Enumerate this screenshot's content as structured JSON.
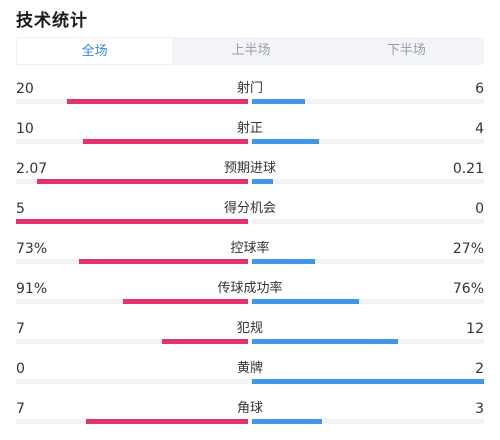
{
  "title": "技术统计",
  "tabs": [
    {
      "label": "全场",
      "active": true
    },
    {
      "label": "上半场",
      "active": false
    },
    {
      "label": "下半场",
      "active": false
    }
  ],
  "colors": {
    "home": "#e4336b",
    "away": "#3d97e6",
    "tab_active": "#3a86e8"
  },
  "stats": [
    {
      "label": "射门",
      "home": "20",
      "away": "6",
      "home_share": 0.78,
      "away_share": 0.23
    },
    {
      "label": "射正",
      "home": "10",
      "away": "4",
      "home_share": 0.71,
      "away_share": 0.29
    },
    {
      "label": "预期进球",
      "home": "2.07",
      "away": "0.21",
      "home_share": 0.91,
      "away_share": 0.09
    },
    {
      "label": "得分机会",
      "home": "5",
      "away": "0",
      "home_share": 1.0,
      "away_share": 0.0
    },
    {
      "label": "控球率",
      "home": "73%",
      "away": "27%",
      "home_share": 0.73,
      "away_share": 0.27
    },
    {
      "label": "传球成功率",
      "home": "91%",
      "away": "76%",
      "home_share": 0.54,
      "away_share": 0.46
    },
    {
      "label": "犯规",
      "home": "7",
      "away": "12",
      "home_share": 0.37,
      "away_share": 0.63
    },
    {
      "label": "黄牌",
      "home": "0",
      "away": "2",
      "home_share": 0.0,
      "away_share": 1.0
    },
    {
      "label": "角球",
      "home": "7",
      "away": "3",
      "home_share": 0.7,
      "away_share": 0.3
    }
  ]
}
